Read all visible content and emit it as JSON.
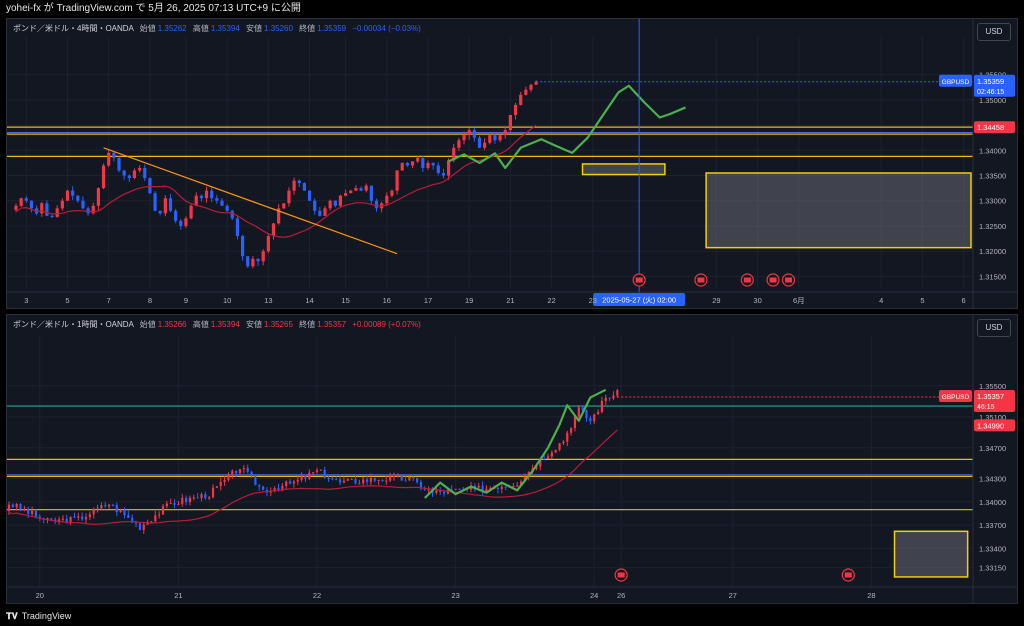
{
  "header": {
    "publisher_line": "yohei-fx が TradingView.com で 5月 26, 2025 07:13 UTC+9 に公開"
  },
  "footer": {
    "brand": "TradingView"
  },
  "colors": {
    "up": "#f23645",
    "down": "#2962ff",
    "ma": "#b71c3a",
    "projection": "#4caf50",
    "level": "#f0b90b",
    "level_blue": "#4a6bdc",
    "zone_border": "#f0d000",
    "pane_bg": "#131722",
    "blue_badge": "#2962ff",
    "red_badge": "#f23645"
  },
  "chart_data": [
    {
      "type": "candlestick",
      "title": "ポンド／米ドル・4時間・OANDA",
      "ohlc_labels": {
        "open_label": "始値",
        "open": "1.35262",
        "high_label": "高値",
        "high": "1.35394",
        "low_label": "安値",
        "low": "1.35260",
        "close_label": "終値",
        "close": "1.35359",
        "change": "−0.00034 (−0.03%)"
      },
      "currency_button": "USD",
      "ylim": [
        1.3125,
        1.3585
      ],
      "y_ticks": [
        "1.35500",
        "1.35000",
        "1.34500",
        "1.34000",
        "1.33500",
        "1.33000",
        "1.32500",
        "1.32000",
        "1.31500"
      ],
      "y_tick_values": [
        1.355,
        1.35,
        1.345,
        1.34,
        1.335,
        1.33,
        1.325,
        1.32,
        1.315
      ],
      "x_ticks": [
        "3",
        "5",
        "7",
        "8",
        "9",
        "10",
        "13",
        "14",
        "15",
        "16",
        "17",
        "19",
        "21",
        "22",
        "23",
        "29",
        "30",
        "6月",
        "4",
        "5",
        "6"
      ],
      "x_tick_index": [
        2,
        10,
        18,
        26,
        33,
        41,
        49,
        57,
        64,
        72,
        80,
        88,
        96,
        104,
        112,
        136,
        144,
        152,
        168,
        176,
        184
      ],
      "cursor_label": "2025-05-27 (火)    02:00",
      "cursor_index": 121,
      "price_badge": {
        "symbol": "GBPUSD",
        "price": "1.35359",
        "countdown": "02:46:15",
        "value": 1.35359
      },
      "level_badge": {
        "price": "1.34458",
        "value": 1.34458
      },
      "levels": [
        {
          "value": 1.3446,
          "color": "#f0b90b"
        },
        {
          "value": 1.3435,
          "color": "#4a6bdc"
        },
        {
          "value": 1.3432,
          "color": "#f0b90b"
        },
        {
          "value": 1.3388,
          "color": "#f0b90b"
        }
      ],
      "zones": [
        {
          "x_from": 110,
          "x_to": 126,
          "y_from": 1.3352,
          "y_to": 1.3373
        },
        {
          "x_from": 134,
          "x_to": 188,
          "y_from": 1.3207,
          "y_to": 1.3355
        }
      ],
      "trendline": {
        "from": [
          17,
          1.3405
        ],
        "to": [
          74,
          1.3195
        ]
      },
      "projection": [
        [
          84,
          1.3378
        ],
        [
          87,
          1.3392
        ],
        [
          90,
          1.3375
        ],
        [
          93,
          1.3394
        ],
        [
          95,
          1.3365
        ],
        [
          98,
          1.3405
        ],
        [
          102,
          1.3422
        ],
        [
          105,
          1.3408
        ],
        [
          108,
          1.3395
        ],
        [
          111,
          1.3425
        ],
        [
          114,
          1.347
        ],
        [
          117,
          1.3515
        ],
        [
          119,
          1.3528
        ],
        [
          122,
          1.3495
        ],
        [
          125,
          1.3465
        ],
        [
          127,
          1.3472
        ],
        [
          130,
          1.3485
        ]
      ],
      "candles_close": [
        1.329,
        1.3305,
        1.33,
        1.3285,
        1.3275,
        1.3295,
        1.327,
        1.3268,
        1.3285,
        1.33,
        1.332,
        1.331,
        1.33,
        1.3285,
        1.3275,
        1.329,
        1.3325,
        1.337,
        1.3395,
        1.3385,
        1.336,
        1.335,
        1.3345,
        1.336,
        1.3365,
        1.3345,
        1.3315,
        1.328,
        1.3275,
        1.3305,
        1.328,
        1.326,
        1.325,
        1.3265,
        1.329,
        1.331,
        1.3305,
        1.332,
        1.3305,
        1.33,
        1.329,
        1.328,
        1.3265,
        1.323,
        1.319,
        1.317,
        1.3185,
        1.318,
        1.32,
        1.323,
        1.3255,
        1.3285,
        1.3295,
        1.332,
        1.334,
        1.3335,
        1.332,
        1.33,
        1.328,
        1.327,
        1.3285,
        1.33,
        1.329,
        1.331,
        1.3315,
        1.332,
        1.3325,
        1.332,
        1.333,
        1.33,
        1.3285,
        1.3295,
        1.331,
        1.332,
        1.336,
        1.3375,
        1.337,
        1.3378,
        1.3385,
        1.3365,
        1.3375,
        1.337,
        1.3355,
        1.335,
        1.338,
        1.3405,
        1.342,
        1.343,
        1.344,
        1.3425,
        1.3405,
        1.3415,
        1.343,
        1.342,
        1.343,
        1.344,
        1.347,
        1.349,
        1.351,
        1.352,
        1.353,
        1.3536
      ],
      "moving_average": "red"
    },
    {
      "type": "candlestick",
      "title": "ポンド／米ドル・1時間・OANDA",
      "ohlc_labels": {
        "open_label": "始値",
        "open": "1.35266",
        "high_label": "高値",
        "high": "1.35394",
        "low_label": "安値",
        "low": "1.35265",
        "close_label": "終値",
        "close": "1.35357",
        "change": "+0.00089 (+0.07%)"
      },
      "currency_button": "USD",
      "ylim": [
        1.329,
        1.359
      ],
      "y_ticks": [
        "1.35500",
        "1.35100",
        "1.34700",
        "1.34300",
        "1.34000",
        "1.33700",
        "1.33400",
        "1.33150"
      ],
      "y_tick_values": [
        1.355,
        1.351,
        1.347,
        1.343,
        1.34,
        1.337,
        1.334,
        1.3315
      ],
      "x_ticks": [
        "20",
        "21",
        "22",
        "23",
        "24",
        "26",
        "27",
        "28"
      ],
      "x_tick_index": [
        8,
        44,
        80,
        116,
        152,
        159,
        188,
        224
      ],
      "price_badge": {
        "symbol": "GBPUSD",
        "price": "1.35357",
        "countdown": "46:15",
        "value": 1.35357
      },
      "level_badge": {
        "price": "1.34990",
        "value": 1.3499
      },
      "levels": [
        {
          "value": 1.3524,
          "color": "#26a69a"
        },
        {
          "value": 1.3455,
          "color": "#f0b90b"
        },
        {
          "value": 1.3435,
          "color": "#4a6bdc"
        },
        {
          "value": 1.3433,
          "color": "#f0b90b"
        },
        {
          "value": 1.339,
          "color": "#f0b90b"
        }
      ],
      "zones": [
        {
          "x_from": 230,
          "x_to": 249,
          "y_from": 1.3303,
          "y_to": 1.3362
        }
      ],
      "projection": [
        [
          108,
          1.3405
        ],
        [
          112,
          1.3425
        ],
        [
          116,
          1.341
        ],
        [
          120,
          1.342
        ],
        [
          124,
          1.3412
        ],
        [
          128,
          1.3425
        ],
        [
          132,
          1.3415
        ],
        [
          136,
          1.344
        ],
        [
          140,
          1.347
        ],
        [
          143,
          1.35
        ],
        [
          145,
          1.3525
        ],
        [
          148,
          1.3505
        ],
        [
          151,
          1.3535
        ],
        [
          155,
          1.3545
        ]
      ]
    }
  ]
}
